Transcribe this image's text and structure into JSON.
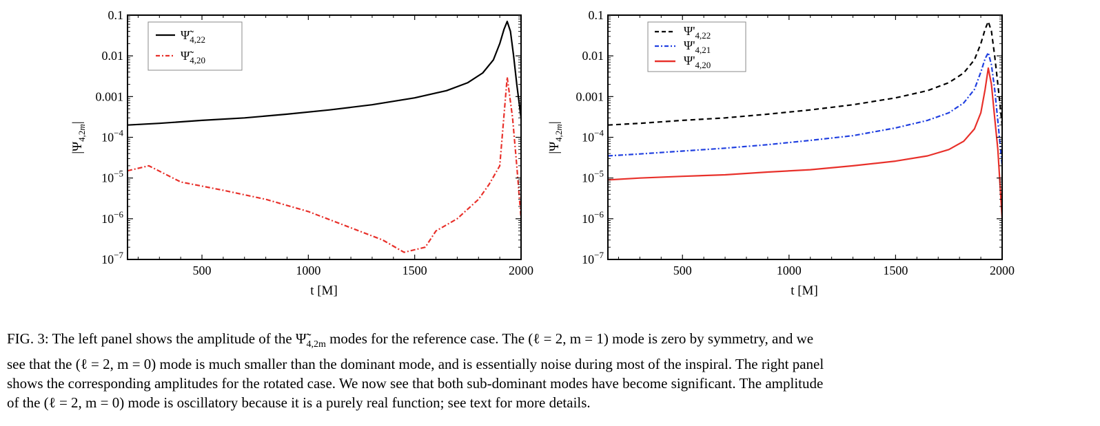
{
  "chart_data": [
    {
      "type": "line",
      "xlabel": "t [M]",
      "ylabel": "|Ψ4,2m|",
      "xlim": [
        150,
        2000
      ],
      "ylim": [
        1e-07,
        0.1
      ],
      "yscale": "log",
      "xticks": [
        500,
        1000,
        1500,
        2000
      ],
      "xtick_labels": [
        "500",
        "1000",
        "1500",
        "2000"
      ],
      "yticks": [
        1e-07,
        1e-06,
        1e-05,
        0.0001,
        0.001,
        0.01,
        0.1
      ],
      "ytick_labels": [
        "10−7",
        "10−6",
        "10−5",
        "10−4",
        "0.001",
        "0.01",
        "0.1"
      ],
      "grid": false,
      "legend": "top-left",
      "series": [
        {
          "name": "Ψ̃4,22",
          "style": "solid",
          "color": "#000000",
          "x": [
            150,
            300,
            500,
            700,
            900,
            1100,
            1300,
            1500,
            1650,
            1750,
            1820,
            1870,
            1900,
            1920,
            1935,
            1950,
            1965,
            1980,
            2000
          ],
          "y": [
            0.0002,
            0.00022,
            0.00026,
            0.0003,
            0.00037,
            0.00047,
            0.00063,
            0.00093,
            0.0014,
            0.0022,
            0.0038,
            0.008,
            0.02,
            0.045,
            0.07,
            0.04,
            0.01,
            0.002,
            0.0003
          ]
        },
        {
          "name": "Ψ̃4,20",
          "style": "dashdot",
          "color": "#e8302a",
          "x": [
            150,
            250,
            400,
            600,
            800,
            1000,
            1200,
            1350,
            1450,
            1550,
            1600,
            1700,
            1800,
            1850,
            1900,
            1935,
            1960,
            1980,
            2000
          ],
          "y": [
            1.5e-05,
            2e-05,
            8e-06,
            5e-06,
            3e-06,
            1.5e-06,
            6e-07,
            3e-07,
            1.5e-07,
            2e-07,
            5e-07,
            1e-06,
            3e-06,
            7e-06,
            2e-05,
            0.003,
            0.0003,
            2e-05,
            1e-06
          ]
        }
      ]
    },
    {
      "type": "line",
      "xlabel": "t [M]",
      "ylabel": "|Ψ4,2m|",
      "xlim": [
        150,
        2000
      ],
      "ylim": [
        1e-07,
        0.1
      ],
      "yscale": "log",
      "xticks": [
        500,
        1000,
        1500,
        2000
      ],
      "xtick_labels": [
        "500",
        "1000",
        "1500",
        "2000"
      ],
      "yticks": [
        1e-07,
        1e-06,
        1e-05,
        0.0001,
        0.001,
        0.01,
        0.1
      ],
      "ytick_labels": [
        "10−7",
        "10−6",
        "10−5",
        "10−4",
        "0.001",
        "0.01",
        "0.1"
      ],
      "grid": false,
      "legend": "top-left",
      "series": [
        {
          "name": "Ψ'4,22",
          "style": "dashed",
          "color": "#000000",
          "x": [
            150,
            300,
            500,
            700,
            900,
            1100,
            1300,
            1500,
            1650,
            1750,
            1820,
            1870,
            1900,
            1920,
            1935,
            1950,
            1965,
            1980,
            2000
          ],
          "y": [
            0.0002,
            0.00022,
            0.00026,
            0.0003,
            0.00037,
            0.00047,
            0.00063,
            0.00093,
            0.0014,
            0.0022,
            0.0038,
            0.008,
            0.02,
            0.045,
            0.07,
            0.04,
            0.01,
            0.002,
            0.0002
          ]
        },
        {
          "name": "Ψ'4,21",
          "style": "dashdot",
          "color": "#1f3fe0",
          "x": [
            150,
            300,
            500,
            700,
            900,
            1100,
            1300,
            1500,
            1650,
            1750,
            1820,
            1870,
            1900,
            1920,
            1935,
            1950,
            1965,
            1980,
            2000
          ],
          "y": [
            3.5e-05,
            3.9e-05,
            4.6e-05,
            5.4e-05,
            6.6e-05,
            8.4e-05,
            0.00011,
            0.00017,
            0.00026,
            0.0004,
            0.0007,
            0.0015,
            0.004,
            0.0085,
            0.012,
            0.006,
            0.0015,
            0.00025,
            2e-05
          ]
        },
        {
          "name": "Ψ'4,20",
          "style": "solid",
          "color": "#e8302a",
          "x": [
            150,
            300,
            500,
            700,
            900,
            1100,
            1300,
            1500,
            1650,
            1750,
            1820,
            1870,
            1900,
            1920,
            1935,
            1950,
            1965,
            1980,
            2000
          ],
          "y": [
            9e-06,
            1e-05,
            1.1e-05,
            1.2e-05,
            1.4e-05,
            1.6e-05,
            2e-05,
            2.6e-05,
            3.5e-05,
            5e-05,
            8e-05,
            0.00016,
            0.0004,
            0.0015,
            0.005,
            0.002,
            0.0003,
            5e-05,
            1e-06
          ]
        }
      ]
    }
  ],
  "caption": {
    "line1_a": "FIG. 3:  The left panel shows the amplitude of the ",
    "line1_sym": "Ψ̃",
    "line1_sub": "4,2m",
    "line1_b": " modes for the reference case. The (ℓ = 2, m = 1) mode is zero by symmetry, and we",
    "line2": "see that the (ℓ = 2, m = 0) mode is much smaller than the dominant mode, and is essentially noise during most of the inspiral. The right panel",
    "line3": "shows the corresponding amplitudes for the rotated case. We now see that both sub-dominant modes have become significant. The amplitude",
    "line4": "of the (ℓ = 2, m = 0) mode is oscillatory because it is a purely real function; see text for more details."
  }
}
